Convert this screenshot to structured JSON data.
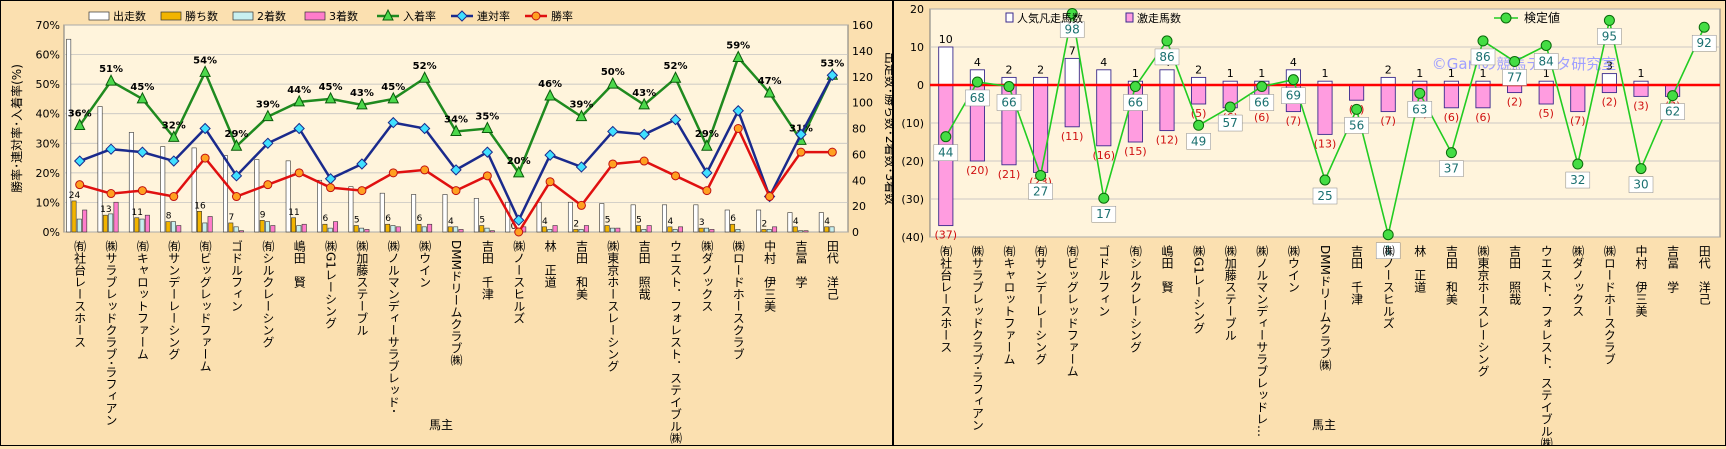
{
  "chart_data": [
    {
      "type": "bar",
      "xlabel": "馬主",
      "ylabel": "勝率･連対率･入着率(%)",
      "y2label": "出走数･勝ち数･2着数･3着数",
      "ylim": [
        0,
        70
      ],
      "y2lim": [
        0,
        160
      ],
      "legend_position": "top",
      "grid": true,
      "colors": {
        "starts": "#ffffff",
        "wins": "#f2b400",
        "second": "#c8f0f0",
        "third": "#ff7ccb",
        "top3": "#1f8a1f",
        "top2": "#1a2a8c",
        "win_rate": "#e01010"
      },
      "categories": [
        "㈲社台レースホース",
        "㈱サラブレッドクラブ･ラフィアン",
        "㈲キャロットファーム",
        "㈲サンデーレーシング",
        "㈲ビッグレッドファーム",
        "ゴドルフィン",
        "㈲シルクレーシング",
        "嶋田　賢",
        "㈱G1レーシング",
        "㈱加藤ステーブル",
        "㈱ノルマンディーサラブレッド･",
        "㈱ウイン",
        "DMMドリームクラブ㈱",
        "吉田　千津",
        "㈱ノースヒルズ",
        "林　正道",
        "吉田　和美",
        "㈱東京ホースレーシング",
        "吉田　照哉",
        "ウエスト．フォレスト．ステイブル㈱",
        "㈱ダノックス",
        "㈱ロードホースクラブ",
        "中村　伊三美",
        "吉冨　学",
        "田代　洋己"
      ],
      "series": [
        {
          "name": "出走数",
          "axis": "right",
          "values": [
            149,
            97,
            77,
            66,
            65,
            59,
            56,
            55,
            40,
            35,
            30,
            29,
            29,
            26,
            23,
            23,
            23,
            22,
            21,
            21,
            21,
            17,
            17,
            15,
            15
          ]
        },
        {
          "name": "勝ち数",
          "axis": "right",
          "values": [
            24,
            13,
            11,
            8,
            16,
            7,
            9,
            11,
            6,
            5,
            6,
            6,
            4,
            5,
            0,
            4,
            2,
            5,
            5,
            4,
            3,
            6,
            2,
            4,
            4
          ]
        },
        {
          "name": "2着数",
          "axis": "right",
          "values": [
            10,
            14,
            10,
            8,
            7,
            4,
            8,
            5,
            3,
            3,
            5,
            4,
            4,
            3,
            1,
            2,
            2,
            3,
            2,
            2,
            3,
            2,
            2,
            1,
            4
          ]
        },
        {
          "name": "3着数",
          "axis": "right",
          "values": [
            17,
            23,
            13,
            5,
            12,
            1,
            5,
            6,
            8,
            2,
            4,
            6,
            2,
            1,
            4,
            5,
            5,
            3,
            5,
            4,
            2,
            0,
            4,
            1,
            0
          ]
        },
        {
          "name": "入着率",
          "axis": "left",
          "values": [
            36,
            51,
            45,
            32,
            54,
            29,
            39,
            44,
            45,
            43,
            45,
            52,
            34,
            35,
            20,
            46,
            39,
            50,
            43,
            52,
            29,
            59,
            47,
            31,
            53
          ],
          "labels": [
            "36%",
            "51%",
            "45%",
            "32%",
            "54%",
            "29%",
            "39%",
            "44%",
            "45%",
            "43%",
            "45%",
            "52%",
            "34%",
            "35%",
            "20%",
            "46%",
            "39%",
            "50%",
            "43%",
            "52%",
            "29%",
            "59%",
            "47%",
            "31%",
            "53%"
          ]
        },
        {
          "name": "連対率",
          "axis": "left",
          "values": [
            24,
            28,
            27,
            24,
            35,
            19,
            30,
            35,
            18,
            23,
            37,
            35,
            21,
            27,
            4,
            26,
            22,
            34,
            33,
            38,
            20,
            41,
            12,
            33,
            53
          ]
        },
        {
          "name": "勝率",
          "axis": "left",
          "values": [
            16,
            13,
            14,
            12,
            25,
            12,
            16,
            20,
            15,
            14,
            20,
            21,
            14,
            19,
            0,
            17,
            9,
            23,
            24,
            19,
            14,
            35,
            12,
            27,
            27
          ]
        }
      ],
      "bar_labels": [
        "24",
        "13",
        "11",
        "8",
        "16",
        "7",
        "9",
        "11",
        "6",
        "5",
        "6",
        "6",
        "4",
        "5",
        "0",
        "4",
        "2",
        "5",
        "5",
        "4",
        "3",
        "6",
        "2",
        "4",
        "4"
      ]
    },
    {
      "type": "bar",
      "xlabel": "馬主",
      "ylim": [
        -40,
        20
      ],
      "legend_position": "top-right",
      "watermark": "©Ganiの競馬データ研究室",
      "grid": true,
      "colors": {
        "popular": "#ffffff",
        "upset": "#ff9ce0",
        "verify": "#22cc22",
        "zero": "#ff0000"
      },
      "categories": [
        "㈲社台レースホース",
        "㈱サラブレッドクラブ･ラフィアン",
        "㈲キャロットファーム",
        "㈲サンデーレーシング",
        "㈲ビッグレッドファーム",
        "ゴドルフィン",
        "㈲シルクレーシング",
        "嶋田　賢",
        "㈱G1レーシング",
        "㈱加藤ステーブル",
        "㈱ノルマンディーサラブレッドレ…",
        "㈱ウイン",
        "DMMドリームクラブ㈱",
        "吉田　千津",
        "㈱ノースヒルズ",
        "林　正道",
        "吉田　和美",
        "㈱東京ホースレーシング",
        "吉田　照哉",
        "ウエスト．フォレスト．ステイブル㈱",
        "㈱ダノックス",
        "㈱ロードホースクラブ",
        "中村　伊三美",
        "吉冨　学",
        "田代　洋己"
      ],
      "series": [
        {
          "name": "人気凡走馬数",
          "values": [
            10,
            4,
            2,
            2,
            7,
            4,
            1,
            4,
            2,
            1,
            1,
            4,
            1,
            0,
            2,
            1,
            1,
            1,
            1,
            1,
            0,
            3,
            1,
            0,
            0
          ]
        },
        {
          "name": "激走馬数",
          "values": [
            -37,
            -20,
            -21,
            -23,
            -11,
            -16,
            -15,
            -12,
            -5,
            -6,
            -6,
            -7,
            -13,
            -4,
            -7,
            -5,
            -6,
            -6,
            -2,
            -5,
            -7,
            -2,
            -3,
            -3,
            0
          ]
        },
        {
          "name": "検定値",
          "values": [
            44,
            68,
            66,
            27,
            98,
            17,
            66,
            86,
            49,
            57,
            66,
            69,
            25,
            56,
            1,
            63,
            37,
            86,
            77,
            84,
            32,
            95,
            30,
            62,
            92
          ]
        }
      ],
      "top_labels": [
        "10",
        "4",
        "2",
        "2",
        "7",
        "4",
        "1",
        "4",
        "2",
        "1",
        "1",
        "4",
        "1",
        "",
        "2",
        "1",
        "1",
        "1",
        "1",
        "1",
        "",
        "3",
        "1",
        "",
        ""
      ],
      "bottom_labels": [
        "(37)",
        "(20)",
        "(21)",
        "(23)",
        "(11)",
        "(16)",
        "(15)",
        "(12)",
        "(5)",
        "(6)",
        "(6)",
        "(7)",
        "(13)",
        "(4)",
        "(7)",
        "(5)",
        "(6)",
        "(6)",
        "(2)",
        "(5)",
        "(7)",
        "(2)",
        "(3)",
        "(3)",
        ""
      ],
      "verify_labels": [
        "44",
        "68",
        "66",
        "27",
        "98",
        "17",
        "66",
        "86",
        "49",
        "57",
        "66",
        "69",
        "25",
        "56",
        "1",
        "63",
        "37",
        "86",
        "77",
        "84",
        "32",
        "95",
        "30",
        "62",
        "92"
      ]
    }
  ]
}
